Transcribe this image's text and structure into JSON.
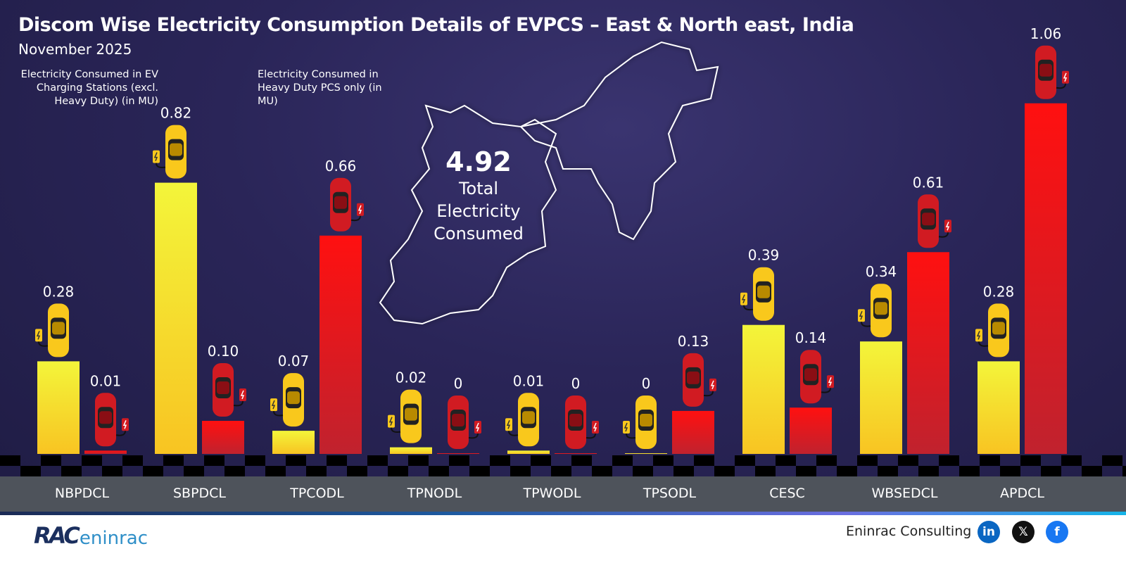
{
  "header": {
    "title": "Discom Wise Electricity Consumption Details of EVPCS – East & North east, India",
    "subtitle": "November 2025"
  },
  "legend": {
    "ev_stations": "Electricity Consumed in EV Charging Stations (excl. Heavy Duty) (in MU)",
    "heavy_duty": "Electricity Consumed in Heavy Duty PCS only (in MU)"
  },
  "total": {
    "value": "4.92",
    "label": "Total Electricity Consumed"
  },
  "chart_data": {
    "type": "bar",
    "title": "Discom Wise Electricity Consumption Details of EVPCS – East & North east, India",
    "subtitle": "November 2025",
    "categories": [
      "NBPDCL",
      "SBPDCL",
      "TPCODL",
      "TPNODL",
      "TPWODL",
      "TPSODL",
      "CESC",
      "WBSEDCL",
      "APDCL"
    ],
    "series": [
      {
        "name": "Electricity Consumed in EV Charging Stations (excl. Heavy Duty) (in MU)",
        "color": "#f5e82e",
        "values": [
          0.28,
          0.82,
          0.07,
          0.02,
          0.01,
          0,
          0.39,
          0.34,
          0.28
        ],
        "labels": [
          "0.28",
          "0.82",
          "0.07",
          "0.02",
          "0.01",
          "0",
          "0.39",
          "0.34",
          "0.28"
        ]
      },
      {
        "name": "Electricity Consumed in Heavy Duty PCS only (in MU)",
        "color": "#ff1010",
        "values": [
          0.01,
          0.1,
          0.66,
          0,
          0,
          0.13,
          0.14,
          0.61,
          1.06
        ],
        "labels": [
          "0.01",
          "0.10",
          "0.66",
          "0",
          "0",
          "0.13",
          "0.14",
          "0.61",
          "1.06"
        ]
      }
    ],
    "ylabel": "MU",
    "ylim": [
      0,
      1.06
    ],
    "grid": false,
    "legend": "top-left"
  },
  "footer": {
    "company": "Eninrac Consulting",
    "logo_text": "RAC eninrac",
    "social": [
      "linkedin",
      "x",
      "facebook"
    ],
    "social_glyphs": [
      "in",
      "𝕏",
      "f"
    ]
  },
  "colors": {
    "ev": "#f5e82e",
    "heavy": "#ff1010",
    "band": "#4e535b",
    "background": "#2a2558"
  }
}
